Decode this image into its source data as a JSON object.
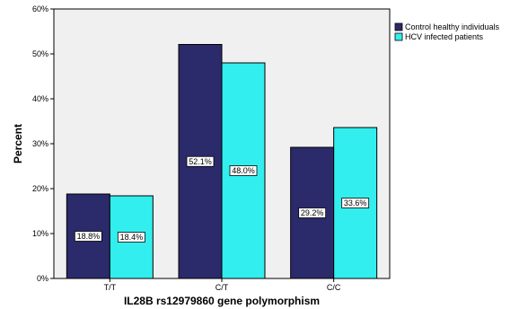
{
  "chart_data": {
    "type": "bar",
    "xlabel": "IL28B rs12979860 gene polymorphism",
    "ylabel": "Percent",
    "ylim": [
      0,
      60
    ],
    "yticks": [
      "0%",
      "10%",
      "20%",
      "30%",
      "40%",
      "50%",
      "60%"
    ],
    "categories": [
      "T/T",
      "C/T",
      "C/C"
    ],
    "series": [
      {
        "name": "Control healthy individuals",
        "color": "#2b2a6b",
        "values": [
          18.8,
          52.1,
          29.2
        ],
        "labels": [
          "18.8%",
          "52.1%",
          "29.2%"
        ]
      },
      {
        "name": "HCV infected patients",
        "color": "#33eeee",
        "values": [
          18.4,
          48.0,
          33.6
        ],
        "labels": [
          "18.4%",
          "48.0%",
          "33.6%"
        ]
      }
    ],
    "legend_position": "top-right",
    "plot_background": "#f0f0f0",
    "grid": false
  }
}
